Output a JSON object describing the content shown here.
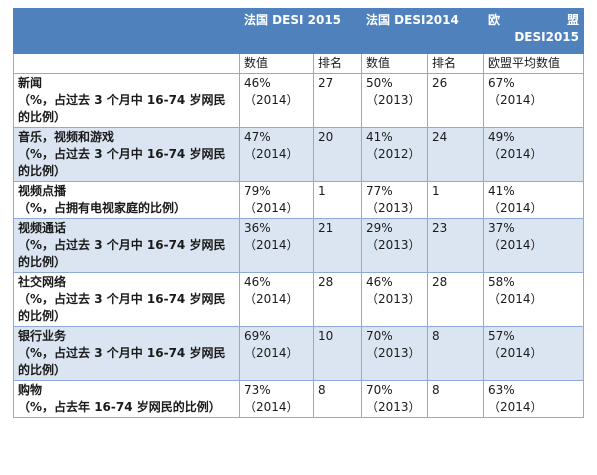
{
  "header": {
    "col1": "",
    "france_2015": "法国 DESI 2015",
    "france_2014": "法国 DESI2014",
    "eu_line1": "欧　　　盟",
    "eu_line2": "DESI2015"
  },
  "subheader": {
    "value_2015": "数值",
    "rank_2015": "排名",
    "value_2014": "数值",
    "rank_2014": "排名",
    "eu_avg": "欧盟平均数值"
  },
  "rows": [
    {
      "name": "新闻",
      "desc": "（%，占过去 3 个月中 16-74 岁网民的比例）",
      "v15": "46%",
      "y15": "（2014）",
      "r15": "27",
      "v14": "50%",
      "y14": "（2013）",
      "r14": "26",
      "eu": "67%",
      "yeu": "（2014）"
    },
    {
      "name": "音乐，视频和游戏",
      "desc": "（%，占过去 3 个月中 16-74 岁网民的比例）",
      "v15": "47%",
      "y15": "（2014）",
      "r15": "20",
      "v14": "41%",
      "y14": "（2012）",
      "r14": "24",
      "eu": "49%",
      "yeu": "（2014）"
    },
    {
      "name": "视频点播",
      "desc": "（%，占拥有电视家庭的比例）",
      "v15": "79%",
      "y15": "（2014）",
      "r15": "1",
      "v14": "77%",
      "y14": "（2013）",
      "r14": "1",
      "eu": "41%",
      "yeu": "（2014）"
    },
    {
      "name": "视频通话",
      "desc": "（%，占过去 3 个月中 16-74 岁网民的比例）",
      "v15": "36%",
      "y15": "（2014）",
      "r15": "21",
      "v14": "29%",
      "y14": "（2013）",
      "r14": "23",
      "eu": "37%",
      "yeu": "（2014）"
    },
    {
      "name": "社交网络",
      "desc": "（%，占过去 3 个月中 16-74 岁网民的比例）",
      "v15": "46%",
      "y15": "（2014）",
      "r15": "28",
      "v14": "46%",
      "y14": "（2013）",
      "r14": "28",
      "eu": "58%",
      "yeu": "（2014）"
    },
    {
      "name": "银行业务",
      "desc": "（%，占过去 3 个月中 16-74 岁网民的比例）",
      "v15": "69%",
      "y15": "（2014）",
      "r15": "10",
      "v14": "70%",
      "y14": "（2013）",
      "r14": "8",
      "eu": "57%",
      "yeu": "（2014）"
    },
    {
      "name": "购物",
      "desc": "（%，占去年 16-74 岁网民的比例）",
      "v15": "73%",
      "y15": "（2014）",
      "r15": "8",
      "v14": "70%",
      "y14": "（2013）",
      "r14": "8",
      "eu": "63%",
      "yeu": "（2014）"
    }
  ]
}
